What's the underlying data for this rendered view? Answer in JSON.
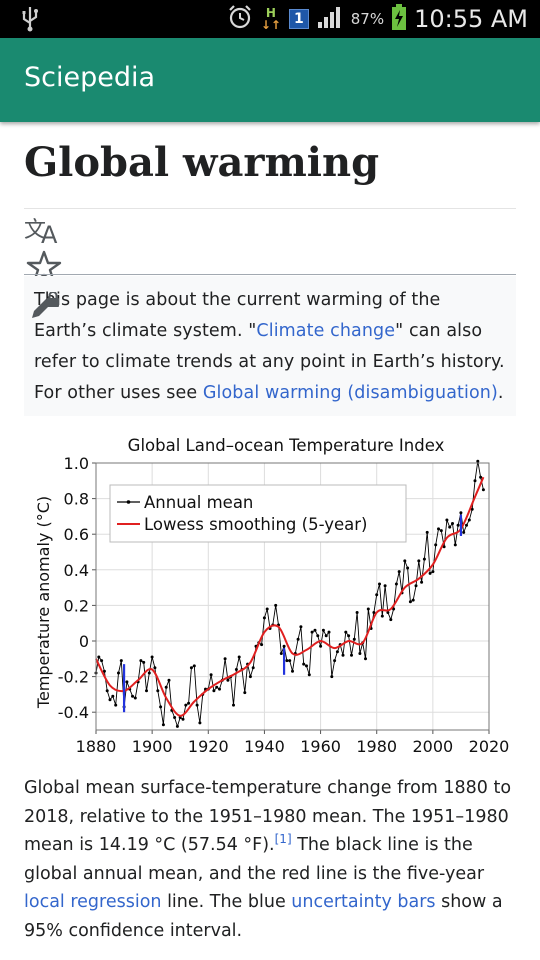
{
  "status_bar": {
    "usb_icon": "usb-icon",
    "alarm_icon": "alarm-icon",
    "network_type": "H",
    "sim_badge": "1",
    "battery_percent": "87%",
    "time": "10:55 AM"
  },
  "app_bar": {
    "title": "Sciepedia"
  },
  "article": {
    "title": "Global warming",
    "hatnote": {
      "text_1": "This page is about the current warming of the Earth’s climate system. \"",
      "link_1": "Climate change",
      "text_2": "\" can also refer to climate trends at any point in Earth’s history. For other uses see ",
      "link_2": "Global warming (disambiguation)",
      "text_3": "."
    },
    "caption": {
      "text_1": "Global mean surface-temperature change from 1880 to 2018, relative to the 1951–1980 mean. The 1951–1980 mean is 14.19 °C (57.54 °F).",
      "ref": "[1]",
      "text_2": " The black line is the global annual mean, and the red line is the five-year ",
      "link_1": "local regression",
      "text_3": " line. The blue ",
      "link_2": "uncertainty bars",
      "text_4": " show a 95% confidence interval."
    }
  },
  "chart_data": {
    "type": "line",
    "title": "Global Land–ocean Temperature Index",
    "xlabel": "",
    "ylabel": "Temperature anomaly (°C)",
    "xlim": [
      1880,
      2020
    ],
    "ylim": [
      -0.5,
      1.0
    ],
    "x_ticks": [
      "1880",
      "1900",
      "1920",
      "1940",
      "1960",
      "1980",
      "2000",
      "2020"
    ],
    "y_ticks": [
      "1.0",
      "0.8",
      "0.6",
      "0.4",
      "0.2",
      "0",
      "-0.2",
      "-0.4"
    ],
    "grid": true,
    "legend_position": "top-left",
    "series": [
      {
        "name": "Annual mean",
        "color": "#000000",
        "x": [
          1880,
          1881,
          1882,
          1883,
          1884,
          1885,
          1886,
          1887,
          1888,
          1889,
          1890,
          1891,
          1892,
          1893,
          1894,
          1895,
          1896,
          1897,
          1898,
          1899,
          1900,
          1901,
          1902,
          1903,
          1904,
          1905,
          1906,
          1907,
          1908,
          1909,
          1910,
          1911,
          1912,
          1913,
          1914,
          1915,
          1916,
          1917,
          1918,
          1919,
          1920,
          1921,
          1922,
          1923,
          1924,
          1925,
          1926,
          1927,
          1928,
          1929,
          1930,
          1931,
          1932,
          1933,
          1934,
          1935,
          1936,
          1937,
          1938,
          1939,
          1940,
          1941,
          1942,
          1943,
          1944,
          1945,
          1946,
          1947,
          1948,
          1949,
          1950,
          1951,
          1952,
          1953,
          1954,
          1955,
          1956,
          1957,
          1958,
          1959,
          1960,
          1961,
          1962,
          1963,
          1964,
          1965,
          1966,
          1967,
          1968,
          1969,
          1970,
          1971,
          1972,
          1973,
          1974,
          1975,
          1976,
          1977,
          1978,
          1979,
          1980,
          1981,
          1982,
          1983,
          1984,
          1985,
          1986,
          1987,
          1988,
          1989,
          1990,
          1991,
          1992,
          1993,
          1994,
          1995,
          1996,
          1997,
          1998,
          1999,
          2000,
          2001,
          2002,
          2003,
          2004,
          2005,
          2006,
          2007,
          2008,
          2009,
          2010,
          2011,
          2012,
          2013,
          2014,
          2015,
          2016,
          2017,
          2018
        ],
        "y": [
          -0.18,
          -0.09,
          -0.11,
          -0.17,
          -0.28,
          -0.33,
          -0.31,
          -0.36,
          -0.18,
          -0.11,
          -0.37,
          -0.23,
          -0.27,
          -0.31,
          -0.32,
          -0.23,
          -0.11,
          -0.12,
          -0.28,
          -0.18,
          -0.09,
          -0.15,
          -0.28,
          -0.37,
          -0.47,
          -0.26,
          -0.22,
          -0.39,
          -0.43,
          -0.48,
          -0.43,
          -0.44,
          -0.36,
          -0.35,
          -0.15,
          -0.14,
          -0.36,
          -0.46,
          -0.3,
          -0.27,
          -0.27,
          -0.19,
          -0.28,
          -0.26,
          -0.27,
          -0.22,
          -0.1,
          -0.22,
          -0.2,
          -0.36,
          -0.16,
          -0.09,
          -0.16,
          -0.29,
          -0.13,
          -0.2,
          -0.15,
          -0.03,
          -0.01,
          -0.02,
          0.13,
          0.18,
          0.07,
          0.09,
          0.2,
          0.09,
          -0.07,
          -0.03,
          -0.11,
          -0.11,
          -0.17,
          -0.07,
          0.01,
          0.08,
          -0.13,
          -0.14,
          -0.19,
          0.05,
          0.06,
          0.03,
          -0.03,
          0.06,
          0.03,
          0.05,
          -0.2,
          -0.11,
          -0.06,
          -0.02,
          -0.08,
          0.05,
          0.03,
          -0.08,
          0.01,
          0.16,
          -0.07,
          -0.01,
          -0.1,
          0.18,
          0.07,
          0.16,
          0.26,
          0.32,
          0.14,
          0.31,
          0.16,
          0.12,
          0.18,
          0.32,
          0.39,
          0.27,
          0.45,
          0.41,
          0.22,
          0.23,
          0.31,
          0.45,
          0.33,
          0.46,
          0.61,
          0.38,
          0.39,
          0.54,
          0.63,
          0.62,
          0.53,
          0.68,
          0.64,
          0.66,
          0.54,
          0.65,
          0.72,
          0.61,
          0.65,
          0.68,
          0.74,
          0.9,
          1.01,
          0.92,
          0.85
        ]
      },
      {
        "name": "Lowess smoothing (5-year)",
        "color": "#e02020",
        "x": [
          1880,
          1885,
          1890,
          1895,
          1900,
          1905,
          1910,
          1915,
          1920,
          1925,
          1930,
          1935,
          1940,
          1945,
          1950,
          1955,
          1960,
          1965,
          1970,
          1975,
          1980,
          1985,
          1990,
          1995,
          2000,
          2005,
          2010,
          2015,
          2018
        ],
        "y": [
          -0.1,
          -0.25,
          -0.28,
          -0.22,
          -0.16,
          -0.32,
          -0.42,
          -0.34,
          -0.27,
          -0.22,
          -0.18,
          -0.12,
          0.05,
          0.08,
          -0.07,
          -0.05,
          0.0,
          -0.04,
          0.0,
          -0.01,
          0.16,
          0.18,
          0.3,
          0.35,
          0.43,
          0.58,
          0.63,
          0.81,
          0.92
        ]
      }
    ],
    "uncertainty_bars": [
      {
        "x": 1890,
        "low": -0.4,
        "high": -0.13
      },
      {
        "x": 1947,
        "low": -0.19,
        "high": -0.04
      },
      {
        "x": 2010,
        "low": 0.59,
        "high": 0.71
      }
    ]
  }
}
